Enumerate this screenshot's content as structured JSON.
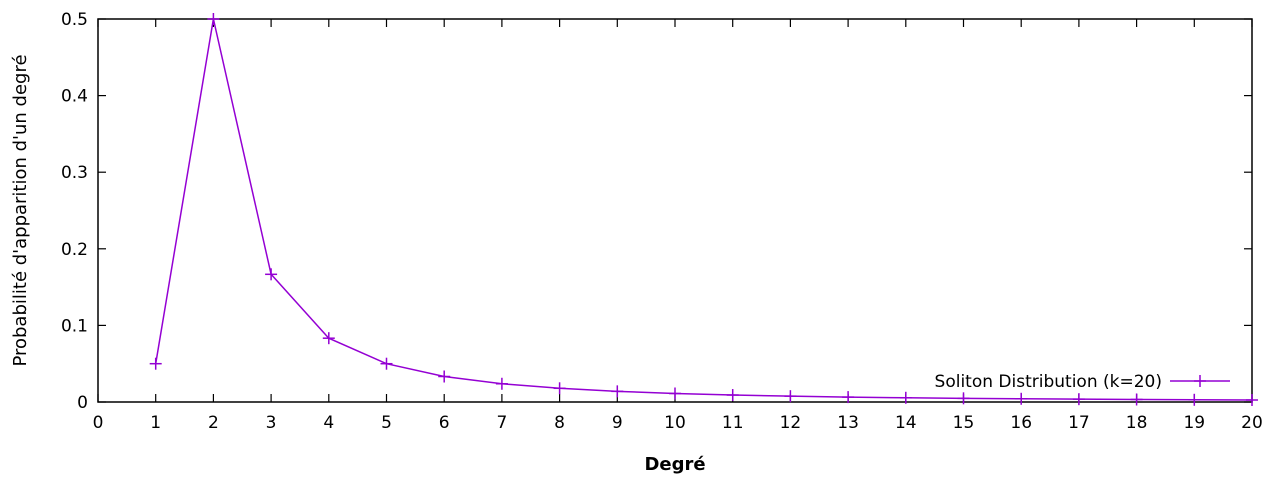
{
  "chart_data": {
    "type": "line",
    "title": "",
    "xlabel": "Degré",
    "ylabel": "Probabilité d'apparition d'un degré",
    "xlim": [
      0,
      20
    ],
    "ylim": [
      0,
      0.5
    ],
    "x_ticks": [
      "0",
      "1",
      "2",
      "3",
      "4",
      "5",
      "6",
      "7",
      "8",
      "9",
      "10",
      "11",
      "12",
      "13",
      "14",
      "15",
      "16",
      "17",
      "18",
      "19",
      "20"
    ],
    "y_ticks": [
      "0",
      "0.1",
      "0.2",
      "0.3",
      "0.4",
      "0.5"
    ],
    "grid": false,
    "legend_position": "bottom-right",
    "series": [
      {
        "name": "Soliton Distribution (k=20)",
        "color": "#9400d3",
        "marker": "plus",
        "x": [
          1,
          2,
          3,
          4,
          5,
          6,
          7,
          8,
          9,
          10,
          11,
          12,
          13,
          14,
          15,
          16,
          17,
          18,
          19,
          20
        ],
        "y": [
          0.05,
          0.5,
          0.1667,
          0.0833,
          0.05,
          0.0333,
          0.0238,
          0.0179,
          0.0139,
          0.0111,
          0.0091,
          0.0076,
          0.0064,
          0.0055,
          0.0048,
          0.0042,
          0.0037,
          0.0033,
          0.0029,
          0.0026
        ]
      }
    ]
  }
}
